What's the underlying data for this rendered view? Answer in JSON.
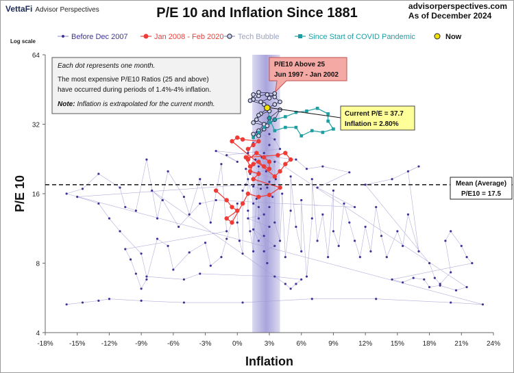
{
  "header": {
    "brand": "VettaFi",
    "brand_sub": "Advisor Perspectives",
    "title": "P/E 10 and Inflation Since 1881",
    "site": "advisorperspectives.com",
    "date": "As of December 2024"
  },
  "chart_data": {
    "type": "scatter",
    "title": "P/E 10 and Inflation Since 1881",
    "xlabel": "Inflation",
    "ylabel": "P/E 10",
    "y_scale": "log",
    "log_scale_label": "Log scale",
    "xlim": [
      -18,
      24
    ],
    "ylim": [
      4,
      64
    ],
    "x_ticks": [
      "-18%",
      "-15%",
      "-12%",
      "-9%",
      "-6%",
      "-3%",
      "0%",
      "3%",
      "6%",
      "9%",
      "12%",
      "15%",
      "18%",
      "21%",
      "24%"
    ],
    "y_ticks": [
      "4",
      "8",
      "16",
      "32",
      "64"
    ],
    "grid": false,
    "legend_position": "top",
    "legend": [
      "Before Dec 2007",
      "Jan 2008 - Feb 2020",
      "Tech Bubble",
      "Since Start of COVID Pandemic",
      "Now"
    ],
    "colors": {
      "before_2007": "#3d3596",
      "before_2007_line": "#9f9bd0",
      "post_2008": "#ef3b36",
      "tech_bubble": "#1a1a3a",
      "tech_fill": "#cfd6e6",
      "covid": "#1e9ea3",
      "now": "#f3e000",
      "band": "#9a94d6"
    },
    "inflation_band": [
      1.4,
      4.0
    ],
    "mean_pe": 17.5,
    "mean_label_line1": "Mean (Average)",
    "mean_label_line2": "P/E10 = 17.5",
    "current": {
      "pe": 37.7,
      "inflation": 2.8
    },
    "series": [
      {
        "name": "Before Dec 2007",
        "marker": "dot",
        "points": [
          [
            -16.0,
            5.3
          ],
          [
            -14.5,
            5.4
          ],
          [
            -13.0,
            5.5
          ],
          [
            -12.0,
            5.6
          ],
          [
            -9.0,
            5.5
          ],
          [
            -5.0,
            5.4
          ],
          [
            0.5,
            5.4
          ],
          [
            7.0,
            5.6
          ],
          [
            13.0,
            5.6
          ],
          [
            20.0,
            5.4
          ],
          [
            23.0,
            5.3
          ],
          [
            -16.0,
            16.0
          ],
          [
            -14.5,
            16.8
          ],
          [
            -13.0,
            19.5
          ],
          [
            -11.0,
            17.0
          ],
          [
            -10.5,
            14.0
          ],
          [
            -9.5,
            13.5
          ],
          [
            -8.5,
            22.5
          ],
          [
            -7.5,
            12.5
          ],
          [
            -6.5,
            20.0
          ],
          [
            -5.0,
            15.5
          ],
          [
            -4.5,
            13.0
          ],
          [
            -3.5,
            18.5
          ],
          [
            -2.5,
            12.0
          ],
          [
            -1.5,
            21.5
          ],
          [
            -1.0,
            11.0
          ],
          [
            -10.5,
            9.2
          ],
          [
            -10.0,
            8.3
          ],
          [
            -9.5,
            7.2
          ],
          [
            -9.0,
            6.2
          ],
          [
            -8.5,
            6.8
          ],
          [
            -7.5,
            10.2
          ],
          [
            -6.5,
            9.5
          ],
          [
            -6.0,
            7.5
          ],
          [
            -4.5,
            8.9
          ],
          [
            -3.0,
            9.8
          ],
          [
            -2.5,
            7.8
          ],
          [
            -1.5,
            8.5
          ],
          [
            -1.0,
            10.2
          ],
          [
            0.0,
            14.5
          ],
          [
            0.0,
            12.0
          ],
          [
            0.2,
            10.0
          ],
          [
            0.5,
            8.8
          ],
          [
            0.5,
            16.5
          ],
          [
            1.0,
            18.5
          ],
          [
            1.0,
            13.5
          ],
          [
            1.2,
            11.0
          ],
          [
            1.5,
            9.0
          ],
          [
            1.8,
            15.2
          ],
          [
            2.0,
            21.0
          ],
          [
            2.0,
            12.5
          ],
          [
            2.5,
            10.5
          ],
          [
            2.8,
            8.0
          ],
          [
            3.0,
            14.0
          ],
          [
            3.0,
            18.0
          ],
          [
            3.5,
            22.0
          ],
          [
            3.5,
            12.0
          ],
          [
            4.0,
            10.0
          ],
          [
            4.2,
            16.0
          ],
          [
            4.5,
            8.5
          ],
          [
            5.0,
            13.5
          ],
          [
            5.0,
            19.0
          ],
          [
            5.5,
            11.5
          ],
          [
            6.0,
            9.0
          ],
          [
            6.0,
            15.0
          ],
          [
            6.5,
            7.0
          ],
          [
            7.0,
            12.5
          ],
          [
            7.0,
            18.5
          ],
          [
            7.5,
            10.0
          ],
          [
            8.0,
            13.0
          ],
          [
            8.5,
            8.5
          ],
          [
            9.0,
            16.5
          ],
          [
            9.0,
            11.0
          ],
          [
            9.5,
            9.5
          ],
          [
            10.0,
            14.5
          ],
          [
            10.5,
            12.0
          ],
          [
            11.0,
            10.0
          ],
          [
            11.5,
            8.5
          ],
          [
            12.0,
            11.5
          ],
          [
            12.5,
            9.0
          ],
          [
            13.0,
            14.0
          ],
          [
            13.5,
            10.5
          ],
          [
            14.0,
            8.5
          ],
          [
            15.0,
            11.0
          ],
          [
            15.5,
            9.5
          ],
          [
            16.0,
            13.0
          ],
          [
            17.0,
            9.0
          ],
          [
            16.0,
            20.0
          ],
          [
            17.0,
            21.0
          ],
          [
            14.5,
            18.5
          ],
          [
            12.0,
            17.5
          ],
          [
            18.0,
            8.0
          ],
          [
            18.5,
            6.9
          ],
          [
            19.0,
            6.5
          ],
          [
            20.0,
            7.3
          ],
          [
            19.5,
            10.0
          ],
          [
            20.0,
            11.0
          ],
          [
            21.0,
            9.5
          ],
          [
            21.5,
            8.5
          ],
          [
            22.0,
            8.0
          ],
          [
            14.5,
            6.8
          ],
          [
            15.5,
            6.6
          ],
          [
            16.5,
            6.9
          ],
          [
            17.5,
            6.8
          ],
          [
            18.0,
            6.3
          ],
          [
            19.0,
            6.4
          ],
          [
            20.5,
            6.1
          ],
          [
            21.5,
            6.3
          ],
          [
            2.5,
            24.0
          ],
          [
            3.0,
            26.0
          ],
          [
            3.0,
            29.0
          ],
          [
            2.5,
            31.0
          ],
          [
            1.5,
            26.5
          ],
          [
            1.0,
            24.0
          ],
          [
            1.8,
            29.5
          ],
          [
            3.5,
            27.5
          ],
          [
            4.0,
            25.0
          ],
          [
            -1.0,
            23.5
          ],
          [
            0.0,
            22.0
          ],
          [
            -2.0,
            24.5
          ],
          [
            5.5,
            22.5
          ],
          [
            6.5,
            20.5
          ],
          [
            8.0,
            21.0
          ],
          [
            10.5,
            19.8
          ],
          [
            7.5,
            17.0
          ],
          [
            11.0,
            14.0
          ],
          [
            -2.0,
            15.0
          ],
          [
            -3.5,
            14.5
          ],
          [
            -5.5,
            11.5
          ],
          [
            -7.0,
            15.0
          ],
          [
            -8.0,
            16.5
          ],
          [
            4.5,
            6.5
          ],
          [
            5.0,
            6.2
          ],
          [
            5.5,
            6.5
          ],
          [
            6.0,
            6.8
          ],
          [
            3.5,
            7.0
          ],
          [
            -3.5,
            7.2
          ],
          [
            -5.0,
            6.8
          ],
          [
            -8.5,
            7.0
          ],
          [
            -9.0,
            8.8
          ],
          [
            -11.0,
            11.0
          ],
          [
            -12.0,
            12.5
          ],
          [
            -13.0,
            14.5
          ],
          [
            -15.0,
            15.5
          ],
          [
            0.8,
            17.5
          ],
          [
            1.5,
            17.2
          ],
          [
            2.2,
            16.8
          ],
          [
            2.8,
            17.0
          ],
          [
            3.3,
            15.5
          ],
          [
            1.2,
            19.5
          ],
          [
            2.0,
            19.8
          ],
          [
            3.0,
            20.5
          ],
          [
            1.7,
            22.5
          ],
          [
            2.3,
            23.0
          ],
          [
            2.7,
            20.0
          ],
          [
            3.6,
            18.5
          ],
          [
            0.8,
            20.5
          ],
          [
            1.5,
            14.5
          ],
          [
            2.0,
            14.0
          ],
          [
            2.5,
            13.0
          ],
          [
            1.0,
            12.5
          ],
          [
            3.0,
            11.5
          ],
          [
            2.0,
            10.0
          ],
          [
            1.5,
            11.2
          ],
          [
            3.5,
            9.5
          ],
          [
            2.5,
            9.0
          ]
        ]
      },
      {
        "name": "Jan 2008 - Feb 2020",
        "marker": "circle",
        "points": [
          [
            -2.0,
            16.5
          ],
          [
            -1.0,
            15.0
          ],
          [
            -0.5,
            14.0
          ],
          [
            0.0,
            13.5
          ],
          [
            -1.0,
            12.5
          ],
          [
            -0.5,
            12.0
          ],
          [
            0.5,
            14.5
          ],
          [
            1.0,
            16.0
          ],
          [
            2.0,
            15.5
          ],
          [
            3.0,
            15.8
          ],
          [
            4.0,
            17.0
          ],
          [
            1.5,
            18.5
          ],
          [
            2.0,
            19.5
          ],
          [
            1.2,
            20.0
          ],
          [
            1.5,
            21.5
          ],
          [
            2.0,
            22.0
          ],
          [
            2.5,
            21.0
          ],
          [
            3.0,
            20.5
          ],
          [
            3.0,
            22.0
          ],
          [
            2.5,
            23.0
          ],
          [
            1.8,
            24.0
          ],
          [
            1.0,
            22.5
          ],
          [
            1.0,
            25.0
          ],
          [
            1.5,
            26.0
          ],
          [
            2.0,
            27.0
          ],
          [
            0.5,
            27.5
          ],
          [
            0.0,
            28.0
          ],
          [
            -0.5,
            27.0
          ],
          [
            3.5,
            19.0
          ],
          [
            4.0,
            20.0
          ],
          [
            4.5,
            21.5
          ],
          [
            5.0,
            22.5
          ],
          [
            4.5,
            24.0
          ],
          [
            3.8,
            23.5
          ],
          [
            0.8,
            23.0
          ],
          [
            1.2,
            21.0
          ]
        ]
      },
      {
        "name": "Tech Bubble",
        "marker": "open-circle",
        "points": [
          [
            2.0,
            30.0
          ],
          [
            2.5,
            32.0
          ],
          [
            1.8,
            33.5
          ],
          [
            2.2,
            35.5
          ],
          [
            2.8,
            37.5
          ],
          [
            3.5,
            39.0
          ],
          [
            4.0,
            40.0
          ],
          [
            3.5,
            42.0
          ],
          [
            2.8,
            43.0
          ],
          [
            2.0,
            42.5
          ],
          [
            1.5,
            41.0
          ],
          [
            2.2,
            40.0
          ],
          [
            3.0,
            41.5
          ],
          [
            3.5,
            43.5
          ],
          [
            2.0,
            44.0
          ],
          [
            1.5,
            43.0
          ],
          [
            1.2,
            40.5
          ],
          [
            2.5,
            39.0
          ],
          [
            3.0,
            36.5
          ],
          [
            2.0,
            35.0
          ],
          [
            1.5,
            32.5
          ],
          [
            2.8,
            31.5
          ],
          [
            3.5,
            33.5
          ],
          [
            4.0,
            37.0
          ],
          [
            3.0,
            34.0
          ],
          [
            2.5,
            30.5
          ],
          [
            2.0,
            28.5
          ],
          [
            1.5,
            29.0
          ]
        ]
      },
      {
        "name": "Since Start of COVID Pandemic",
        "marker": "square",
        "points": [
          [
            1.5,
            28.0
          ],
          [
            2.0,
            29.5
          ],
          [
            2.5,
            31.0
          ],
          [
            3.0,
            32.5
          ],
          [
            3.5,
            33.5
          ],
          [
            4.5,
            34.5
          ],
          [
            5.5,
            36.0
          ],
          [
            6.5,
            36.5
          ],
          [
            7.5,
            37.5
          ],
          [
            8.5,
            35.5
          ],
          [
            8.5,
            33.0
          ],
          [
            9.0,
            30.5
          ],
          [
            8.0,
            29.5
          ],
          [
            7.0,
            30.0
          ],
          [
            6.0,
            28.5
          ],
          [
            5.5,
            31.0
          ],
          [
            4.5,
            31.0
          ],
          [
            3.5,
            30.0
          ],
          [
            3.0,
            34.0
          ],
          [
            2.8,
            37.7
          ]
        ]
      },
      {
        "name": "Now",
        "marker": "big-circle",
        "points": [
          [
            2.8,
            37.7
          ]
        ]
      }
    ],
    "annotations": {
      "note_line1": "Each dot represents one month.",
      "note_line2": "The most expensive P/E10 Ratios (25 and above)",
      "note_line3": "have occurred during periods of 1.4%-4% inflation.",
      "note_bold": "Note:",
      "note_rest": "Inflation is extrapolated for the current month.",
      "callout_line1": "P/E10 Above 25",
      "callout_line2": "Jun 1997 - Jan 2002",
      "current_line1": "Current P/E = 37.7",
      "current_line2": "Inflation = 2.80%"
    }
  }
}
